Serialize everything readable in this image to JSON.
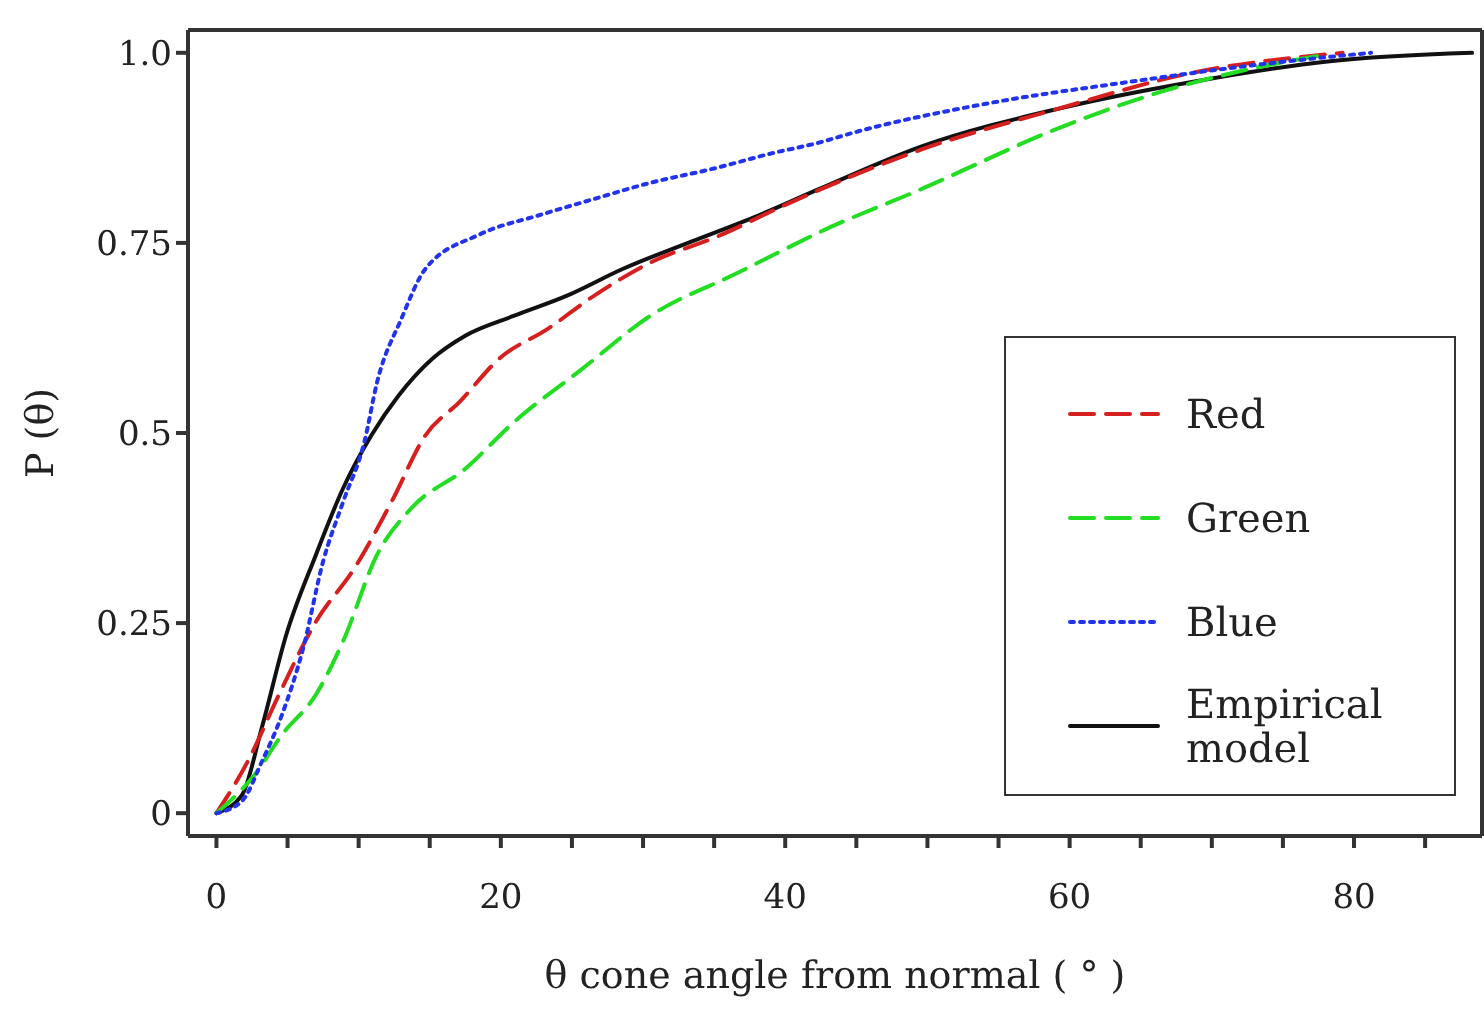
{
  "chart_data": {
    "type": "line",
    "xlabel": "θ cone angle from normal ( ° )",
    "ylabel": "P (θ)",
    "xlim": [
      -2,
      89
    ],
    "ylim": [
      -0.03,
      1.03
    ],
    "xticks": [
      0,
      {
        "value": 5,
        "label": null
      },
      {
        "value": 10,
        "label": null
      },
      {
        "value": 15,
        "label": null
      },
      20,
      {
        "value": 25,
        "label": null
      },
      {
        "value": 30,
        "label": null
      },
      {
        "value": 35,
        "label": null
      },
      40,
      {
        "value": 45,
        "label": null
      },
      {
        "value": 50,
        "label": null
      },
      {
        "value": 55,
        "label": null
      },
      60,
      {
        "value": 65,
        "label": null
      },
      {
        "value": 70,
        "label": null
      },
      {
        "value": 75,
        "label": null
      },
      80,
      {
        "value": 85,
        "label": null
      }
    ],
    "yticks": [
      0,
      0.25,
      0.5,
      0.75,
      {
        "value": 1,
        "label": "1.0"
      }
    ],
    "grid": false,
    "legend": "right",
    "marker": "none",
    "series": [
      {
        "name": "Red",
        "color": "#d62020",
        "line_style": "dashed",
        "x": [
          0,
          2.2,
          4.4,
          7.0,
          9.7,
          12.3,
          14.7,
          17.1,
          19.9,
          23.3,
          26.6,
          30.5,
          35.3,
          40,
          49.6,
          59.1,
          68.7,
          79.2
        ],
        "values": [
          0,
          0.068,
          0.156,
          0.252,
          0.322,
          0.409,
          0.497,
          0.541,
          0.598,
          0.637,
          0.681,
          0.724,
          0.759,
          0.8,
          0.873,
          0.926,
          0.974,
          1.0
        ]
      },
      {
        "name": "Green",
        "color": "#22dd22",
        "line_style": "dashed",
        "x": [
          0,
          2.7,
          4.6,
          7.0,
          8.9,
          11.3,
          13.7,
          17.5,
          20.9,
          25.7,
          30.5,
          36.7,
          40,
          42.4,
          49.6,
          59.1,
          66.3,
          73.5,
          77.8
        ],
        "values": [
          0,
          0.051,
          0.103,
          0.156,
          0.226,
          0.34,
          0.401,
          0.453,
          0.514,
          0.584,
          0.654,
          0.711,
          0.742,
          0.764,
          0.821,
          0.9,
          0.948,
          0.982,
          0.997
        ]
      },
      {
        "name": "Blue",
        "color": "#2233ee",
        "line_style": "dotted",
        "x": [
          0,
          1.8,
          3.2,
          4.6,
          6.1,
          7.5,
          8.9,
          10.4,
          11.3,
          13.0,
          14.7,
          18.5,
          22.8,
          26.6,
          30.5,
          34.8,
          39.1,
          42.4,
          44.8,
          54.4,
          63.9,
          73.5,
          81.2
        ],
        "values": [
          0,
          0.016,
          0.068,
          0.129,
          0.217,
          0.331,
          0.409,
          0.488,
          0.567,
          0.65,
          0.716,
          0.761,
          0.787,
          0.808,
          0.829,
          0.847,
          0.868,
          0.882,
          0.895,
          0.934,
          0.961,
          0.985,
          1.0
        ]
      },
      {
        "name": "Empirical model",
        "color": "#111111",
        "line_style": "solid",
        "x": [
          0,
          1.8,
          3.2,
          4.9,
          7.0,
          8.9,
          10.9,
          12.8,
          15.2,
          17.5,
          20.9,
          24.7,
          28.6,
          33.3,
          38.1,
          42.4,
          49.6,
          59.1,
          68.7,
          78.3,
          88.3
        ],
        "values": [
          0,
          0.024,
          0.113,
          0.234,
          0.34,
          0.427,
          0.497,
          0.549,
          0.598,
          0.628,
          0.654,
          0.681,
          0.716,
          0.751,
          0.786,
          0.821,
          0.877,
          0.926,
          0.962,
          0.989,
          1.0
        ]
      }
    ]
  }
}
